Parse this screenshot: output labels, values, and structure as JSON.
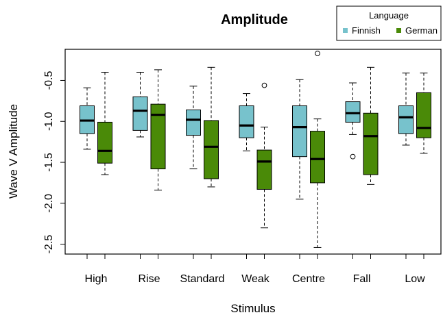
{
  "chart_data": {
    "type": "box",
    "title": "Amplitude",
    "xlabel": "Stimulus",
    "ylabel": "Wave V Amplitude",
    "ylim": [
      -2.62,
      -0.12
    ],
    "yticks": [
      -0.5,
      -1.0,
      -1.5,
      -2.0,
      -2.5
    ],
    "ytick_labels": [
      "-0.5",
      "-1.0",
      "-1.5",
      "-2.0",
      "-2.5"
    ],
    "categories": [
      "High",
      "Rise",
      "Standard",
      "Weak",
      "Centre",
      "Fall",
      "Low"
    ],
    "legend": {
      "title": "Language",
      "position": "top-right",
      "entries": [
        "Finnish",
        "German"
      ]
    },
    "series": [
      {
        "name": "Finnish",
        "color": "#77c2cc",
        "boxes": [
          {
            "min": -1.34,
            "q1": -1.15,
            "median": -0.99,
            "q3": -0.81,
            "max": -0.59,
            "outliers": []
          },
          {
            "min": -1.19,
            "q1": -1.11,
            "median": -0.87,
            "q3": -0.7,
            "max": -0.4,
            "outliers": []
          },
          {
            "min": -1.58,
            "q1": -1.17,
            "median": -0.98,
            "q3": -0.86,
            "max": -0.57,
            "outliers": []
          },
          {
            "min": -1.36,
            "q1": -1.2,
            "median": -1.05,
            "q3": -0.81,
            "max": -0.66,
            "outliers": []
          },
          {
            "min": -1.95,
            "q1": -1.43,
            "median": -1.07,
            "q3": -0.81,
            "max": -0.49,
            "outliers": []
          },
          {
            "min": -1.16,
            "q1": -1.01,
            "median": -0.9,
            "q3": -0.76,
            "max": -0.53,
            "outliers": [
              -1.43
            ]
          },
          {
            "min": -1.29,
            "q1": -1.15,
            "median": -0.95,
            "q3": -0.81,
            "max": -0.41,
            "outliers": []
          }
        ]
      },
      {
        "name": "German",
        "color": "#4a8a08",
        "boxes": [
          {
            "min": -1.65,
            "q1": -1.51,
            "median": -1.36,
            "q3": -1.01,
            "max": -0.4,
            "outliers": []
          },
          {
            "min": -1.84,
            "q1": -1.58,
            "median": -0.92,
            "q3": -0.79,
            "max": -0.37,
            "outliers": []
          },
          {
            "min": -1.8,
            "q1": -1.7,
            "median": -1.31,
            "q3": -0.99,
            "max": -0.34,
            "outliers": []
          },
          {
            "min": -2.3,
            "q1": -1.83,
            "median": -1.49,
            "q3": -1.35,
            "max": -1.07,
            "outliers": [
              -0.56
            ]
          },
          {
            "min": -2.54,
            "q1": -1.75,
            "median": -1.46,
            "q3": -1.12,
            "max": -0.97,
            "outliers": [
              -0.17
            ]
          },
          {
            "min": -1.77,
            "q1": -1.65,
            "median": -1.18,
            "q3": -0.9,
            "max": -0.34,
            "outliers": []
          },
          {
            "min": -1.39,
            "q1": -1.2,
            "median": -1.08,
            "q3": -0.65,
            "max": -0.41,
            "outliers": []
          }
        ]
      }
    ]
  }
}
